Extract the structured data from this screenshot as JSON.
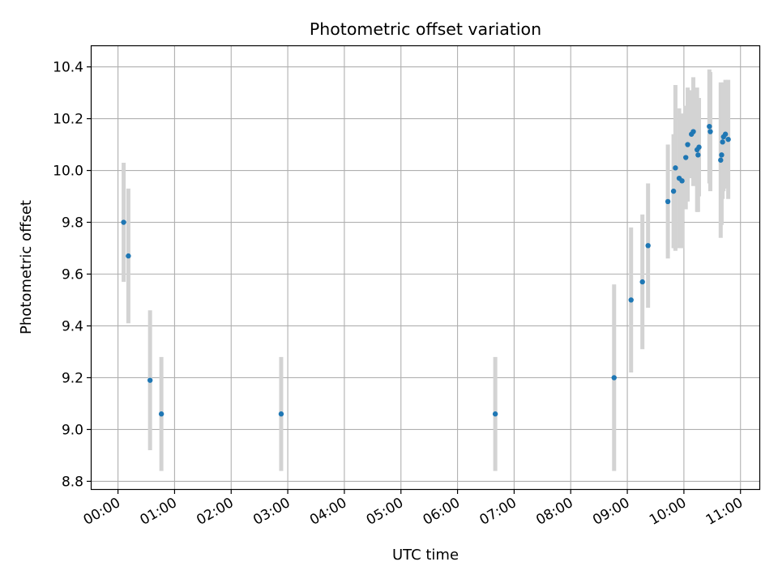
{
  "chart_data": {
    "type": "scatter",
    "title": "Photometric offset variation",
    "xlabel": "UTC time",
    "ylabel": "Photometric offset",
    "x_unit": "hours UTC",
    "xlim": [
      "23:32",
      "11:20"
    ],
    "ylim": [
      8.77,
      10.48
    ],
    "x_ticks": [
      "00:00",
      "01:00",
      "02:00",
      "03:00",
      "04:00",
      "05:00",
      "06:00",
      "07:00",
      "08:00",
      "09:00",
      "10:00",
      "11:00"
    ],
    "y_ticks": [
      "8.8",
      "9.0",
      "9.2",
      "9.4",
      "9.6",
      "9.8",
      "10.0",
      "10.2",
      "10.4"
    ],
    "grid": true,
    "colors": {
      "point": "#1f77b4",
      "errorbar": "#d3d3d3",
      "grid": "#b0b0b0"
    },
    "series": [
      {
        "points": [
          {
            "x": "00:06",
            "y": 9.8,
            "err": 0.23
          },
          {
            "x": "00:11",
            "y": 9.67,
            "err": 0.26
          },
          {
            "x": "00:34",
            "y": 9.19,
            "err": 0.27
          },
          {
            "x": "00:46",
            "y": 9.06,
            "err": 0.22
          },
          {
            "x": "02:53",
            "y": 9.06,
            "err": 0.22
          },
          {
            "x": "06:40",
            "y": 9.06,
            "err": 0.22
          },
          {
            "x": "08:46",
            "y": 9.2,
            "err": 0.36
          },
          {
            "x": "09:04",
            "y": 9.5,
            "err": 0.28
          },
          {
            "x": "09:16",
            "y": 9.57,
            "err": 0.26
          },
          {
            "x": "09:22",
            "y": 9.71,
            "err": 0.24
          },
          {
            "x": "09:43",
            "y": 9.88,
            "err": 0.22
          },
          {
            "x": "09:49",
            "y": 9.92,
            "err": 0.22
          },
          {
            "x": "09:51",
            "y": 10.01,
            "err": 0.32
          },
          {
            "x": "09:55",
            "y": 9.97,
            "err": 0.27
          },
          {
            "x": "09:58",
            "y": 9.96,
            "err": 0.26
          },
          {
            "x": "10:02",
            "y": 10.05,
            "err": 0.2
          },
          {
            "x": "10:04",
            "y": 10.1,
            "err": 0.22
          },
          {
            "x": "10:08",
            "y": 10.14,
            "err": 0.17
          },
          {
            "x": "10:10",
            "y": 10.15,
            "err": 0.21
          },
          {
            "x": "10:14",
            "y": 10.08,
            "err": 0.24
          },
          {
            "x": "10:15",
            "y": 10.06,
            "err": 0.22
          },
          {
            "x": "10:16",
            "y": 10.09,
            "err": 0.19
          },
          {
            "x": "10:27",
            "y": 10.17,
            "err": 0.22
          },
          {
            "x": "10:28",
            "y": 10.15,
            "err": 0.23
          },
          {
            "x": "10:39",
            "y": 10.04,
            "err": 0.3
          },
          {
            "x": "10:40",
            "y": 10.06,
            "err": 0.27
          },
          {
            "x": "10:41",
            "y": 10.11,
            "err": 0.22
          },
          {
            "x": "10:42",
            "y": 10.13,
            "err": 0.21
          },
          {
            "x": "10:44",
            "y": 10.14,
            "err": 0.21
          },
          {
            "x": "10:47",
            "y": 10.12,
            "err": 0.23
          }
        ]
      }
    ]
  }
}
